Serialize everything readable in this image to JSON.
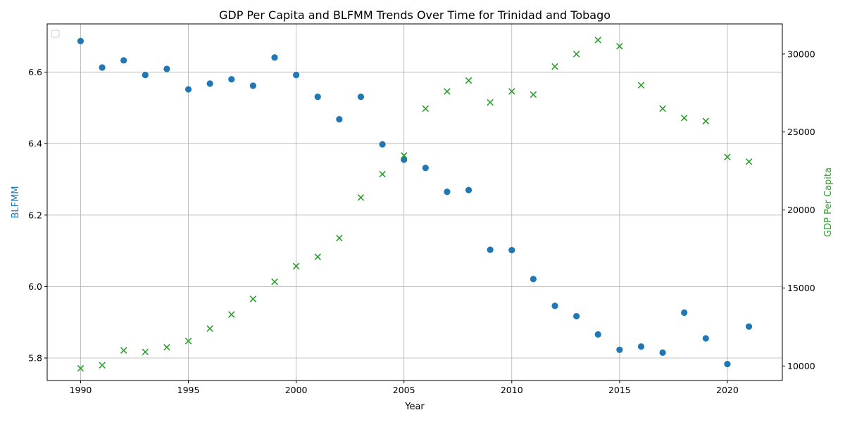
{
  "chart_data": {
    "type": "scatter",
    "title": "GDP Per Capita and BLFMM Trends Over Time for Trinidad and Tobago",
    "xlabel": "Year",
    "ylabel_left": "BLFMM",
    "ylabel_right": "GDP Per Capita",
    "xlim": [
      1988.45,
      2022.55
    ],
    "ylim_left": [
      5.737,
      6.735
    ],
    "ylim_right": [
      9070,
      31930
    ],
    "x_ticks": [
      1990,
      1995,
      2000,
      2005,
      2010,
      2015,
      2020
    ],
    "y_ticks_left": [
      5.8,
      6.0,
      6.2,
      6.4,
      6.6
    ],
    "y_ticks_right": [
      10000,
      15000,
      20000,
      25000,
      30000
    ],
    "grid": true,
    "legend": "top-left, empty",
    "colors": {
      "blfmm": "#1f77b4",
      "gdp": "#2ca02c"
    },
    "series": [
      {
        "key": "blfmm",
        "axis": "left",
        "marker": "circle",
        "x": [
          1990,
          1991,
          1992,
          1993,
          1994,
          1995,
          1996,
          1997,
          1998,
          1999,
          2000,
          2001,
          2002,
          2003,
          2004,
          2005,
          2006,
          2007,
          2008,
          2009,
          2010,
          2011,
          2012,
          2013,
          2014,
          2015,
          2016,
          2017,
          2018,
          2019,
          2020,
          2021
        ],
        "y": [
          6.687,
          6.613,
          6.633,
          6.592,
          6.609,
          6.552,
          6.568,
          6.58,
          6.562,
          6.641,
          6.592,
          6.531,
          6.468,
          6.531,
          6.398,
          6.355,
          6.332,
          6.265,
          6.27,
          6.103,
          6.102,
          6.021,
          5.946,
          5.917,
          5.866,
          5.823,
          5.832,
          5.815,
          5.927,
          5.855,
          5.783,
          5.888
        ]
      },
      {
        "key": "gdp",
        "axis": "right",
        "marker": "x",
        "x": [
          1990,
          1991,
          1992,
          1993,
          1994,
          1995,
          1996,
          1997,
          1998,
          1999,
          2000,
          2001,
          2002,
          2003,
          2004,
          2005,
          2006,
          2007,
          2008,
          2009,
          2010,
          2011,
          2012,
          2013,
          2014,
          2015,
          2016,
          2017,
          2018,
          2019,
          2020,
          2021
        ],
        "y": [
          9850,
          10050,
          11000,
          10900,
          11200,
          11600,
          12400,
          13300,
          14300,
          15400,
          16400,
          17000,
          18200,
          20800,
          22300,
          23500,
          26500,
          27600,
          28300,
          26900,
          27600,
          27400,
          29200,
          30000,
          30900,
          30500,
          28000,
          26500,
          25900,
          25700,
          23400,
          23100
        ]
      }
    ]
  }
}
